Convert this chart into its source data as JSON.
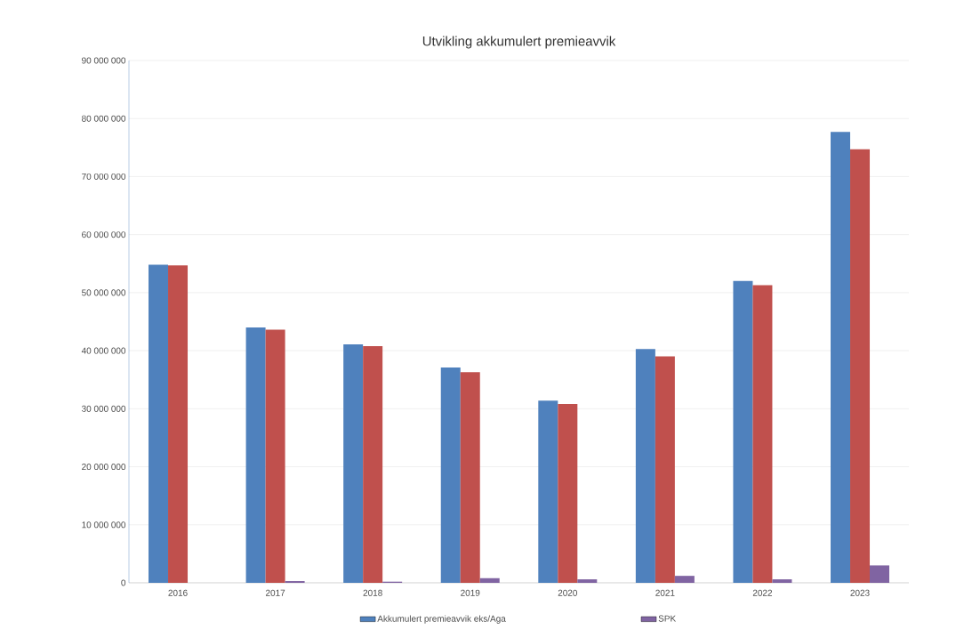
{
  "chart_data": {
    "type": "bar",
    "title": "Utvikling akkumulert premieavvik",
    "categories": [
      "2016",
      "2017",
      "2018",
      "2019",
      "2020",
      "2021",
      "2022",
      "2023"
    ],
    "series": [
      {
        "name": "Akkumulert premieavvik eks/Aga",
        "color": "#4f81bd",
        "values": [
          54800000,
          44000000,
          41100000,
          37100000,
          31400000,
          40300000,
          52000000,
          77700000
        ]
      },
      {
        "color": "#c0504d",
        "values": [
          54700000,
          43600000,
          40800000,
          36300000,
          30800000,
          39000000,
          51300000,
          74700000
        ]
      },
      {
        "name": "SPK",
        "color": "#8064a2",
        "values": [
          0,
          300000,
          200000,
          800000,
          600000,
          1200000,
          600000,
          3000000
        ]
      }
    ],
    "ylim": [
      0,
      90000000
    ],
    "yticks": [
      {
        "value": 0,
        "label": "0"
      },
      {
        "value": 10000000,
        "label": "10 000 000"
      },
      {
        "value": 20000000,
        "label": "20 000 000"
      },
      {
        "value": 30000000,
        "label": "30 000 000"
      },
      {
        "value": 40000000,
        "label": "40 000 000"
      },
      {
        "value": 50000000,
        "label": "50 000 000"
      },
      {
        "value": 60000000,
        "label": "60 000 000"
      },
      {
        "value": 70000000,
        "label": "70 000 000"
      },
      {
        "value": 80000000,
        "label": "80 000 000"
      },
      {
        "value": 90000000,
        "label": "90 000 000"
      }
    ],
    "grid": "y",
    "legend": "bottom"
  }
}
